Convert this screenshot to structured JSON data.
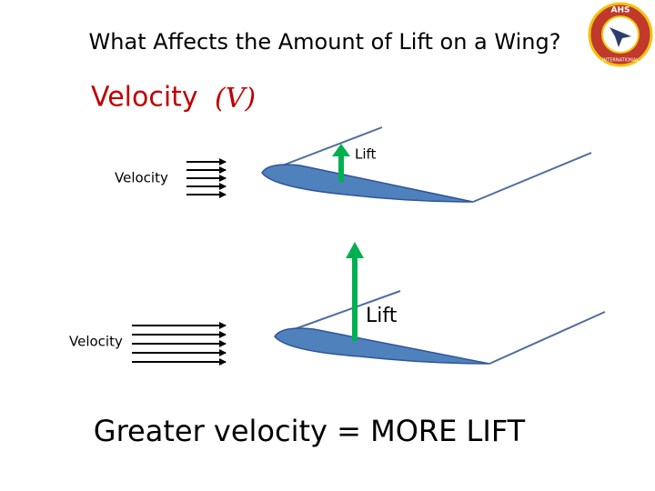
{
  "header": {
    "title": "What Affects the Amount of Lift on a Wing?",
    "logo_top": "AHS",
    "logo_ring": "INTERNATIONAL"
  },
  "subtitle": {
    "label": "Velocity",
    "variable": "(V)"
  },
  "diagrams": [
    {
      "lift_label": "Lift",
      "velocity_label": "Velocity"
    },
    {
      "lift_label": "Lift",
      "velocity_label": "Velocity"
    }
  ],
  "caption": "Greater velocity = MORE LIFT"
}
